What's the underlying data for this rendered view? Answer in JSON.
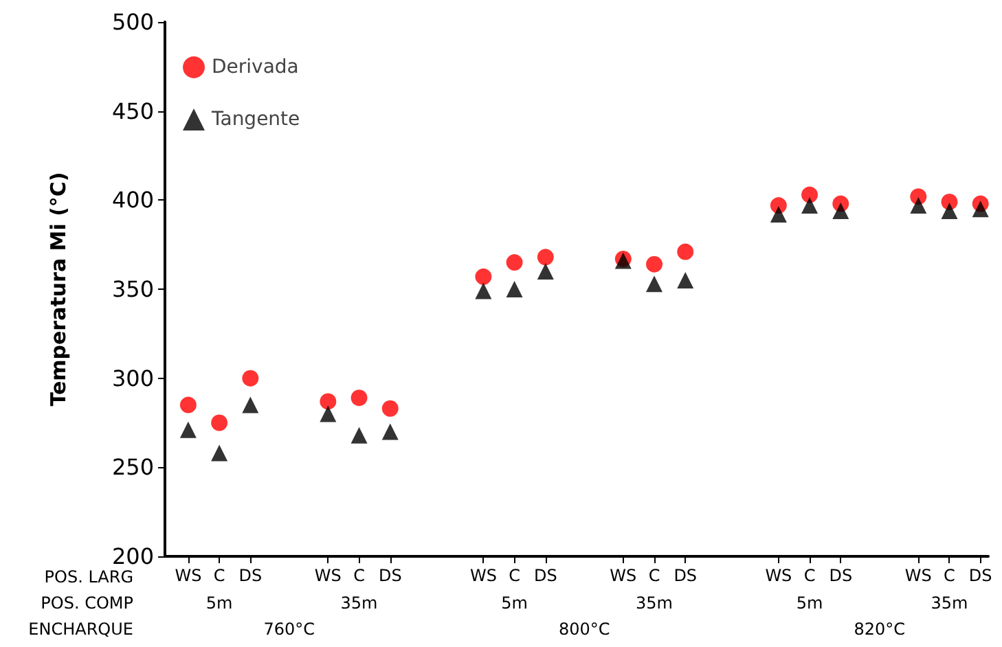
{
  "chart_data": {
    "type": "scatter",
    "ylabel": "Temperatura Mi (°C)",
    "categories": [
      null,
      "WS",
      null,
      "C",
      null,
      "DS",
      null,
      null,
      null,
      null,
      "WS",
      null,
      "C",
      null,
      "DS",
      null,
      null,
      null,
      null,
      null,
      "WS",
      null,
      "C",
      null,
      "DS",
      null,
      null,
      null,
      null,
      "WS",
      null,
      "C",
      null,
      "DS",
      null,
      null,
      null,
      null,
      null,
      "WS",
      null,
      "C",
      null,
      "DS",
      null,
      null,
      null,
      null,
      "WS",
      null,
      "C",
      null,
      "DS"
    ],
    "series": [
      {
        "name": "Derivada",
        "color": "#ff0000",
        "marker": "circle",
        "values": [
          null,
          285,
          null,
          275,
          null,
          300,
          null,
          null,
          null,
          null,
          287,
          null,
          289,
          null,
          283,
          null,
          null,
          null,
          null,
          null,
          357,
          null,
          365,
          null,
          368,
          null,
          null,
          null,
          null,
          367,
          null,
          364,
          null,
          371,
          null,
          null,
          null,
          null,
          null,
          397,
          null,
          403,
          null,
          398,
          null,
          null,
          null,
          null,
          402,
          null,
          399,
          null,
          398
        ]
      },
      {
        "name": "Tangente",
        "color": "#000000",
        "marker": "triangle",
        "values": [
          null,
          271,
          null,
          258,
          null,
          285,
          null,
          null,
          null,
          null,
          280,
          null,
          268,
          null,
          270,
          null,
          null,
          null,
          null,
          null,
          349,
          null,
          350,
          null,
          360,
          null,
          null,
          null,
          null,
          366,
          null,
          353,
          null,
          355,
          null,
          null,
          null,
          null,
          null,
          392,
          null,
          397,
          null,
          394,
          null,
          null,
          null,
          null,
          397,
          null,
          394,
          null,
          395
        ]
      }
    ],
    "ylim": [
      200,
      500
    ],
    "yticks": [
      200,
      250,
      300,
      350,
      400,
      450,
      500
    ],
    "grid": false,
    "legend": "top left",
    "annotations": [
      "POS. LARG",
      "POS. COMP",
      "ENCHARQUE",
      "5m",
      "35m",
      "5m",
      "35m",
      "5m",
      "35m",
      "760°C",
      "800°C",
      "820°C"
    ]
  }
}
